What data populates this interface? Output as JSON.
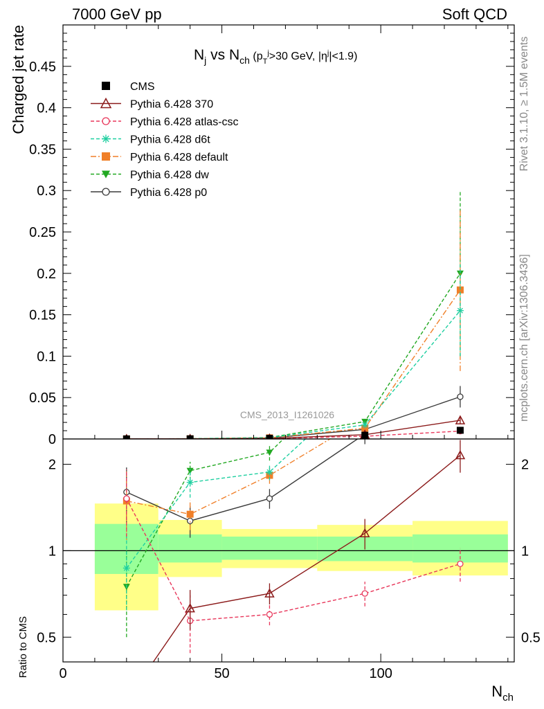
{
  "header": {
    "left_label": "7000 GeV pp",
    "right_label": "Soft QCD"
  },
  "side_labels": {
    "rivet": "Rivet 3.1.10, ≥ 1.5M events",
    "source": "mcplots.cern.ch [arXiv:1306.3436]"
  },
  "chart_data": {
    "type": "line",
    "title": "N_j vs N_ch (p_T^j>30 GeV, |η^j|<1.9)",
    "analysis_tag": "CMS_2013_I1261026",
    "xlabel": "N_ch",
    "ylabel": "Charged jet rate",
    "ratio_ylabel": "Ratio to CMS",
    "xlim": [
      0,
      142
    ],
    "ylim": [
      0,
      0.5
    ],
    "ratio_ylim": [
      0.41,
      2.45
    ],
    "ratio_log": true,
    "x_ticks": [
      0,
      50,
      100
    ],
    "y_ticks": [
      0,
      0.05,
      0.1,
      0.15,
      0.2,
      0.25,
      0.3,
      0.35,
      0.4,
      0.45
    ],
    "ratio_ticks": [
      0.5,
      1,
      2
    ],
    "bins": [
      [
        10,
        30
      ],
      [
        30,
        50
      ],
      [
        50,
        80
      ],
      [
        80,
        110
      ],
      [
        110,
        140
      ]
    ],
    "band_inner": [
      [
        0.83,
        1.24
      ],
      [
        0.91,
        1.14
      ],
      [
        0.93,
        1.12
      ],
      [
        0.92,
        1.12
      ],
      [
        0.91,
        1.14
      ]
    ],
    "band_outer": [
      [
        0.62,
        1.46
      ],
      [
        0.81,
        1.28
      ],
      [
        0.87,
        1.19
      ],
      [
        0.85,
        1.23
      ],
      [
        0.82,
        1.27
      ]
    ],
    "legend": {
      "position": "top-left"
    },
    "series": [
      {
        "name": "CMS",
        "color": "#000000",
        "marker": "filled-square",
        "line": "none",
        "x": [
          20,
          40,
          65,
          95,
          125
        ],
        "y": [
          0.0001,
          0.0002,
          0.0008,
          0.0045,
          0.0105
        ]
      },
      {
        "name": "Pythia 6.428 370",
        "color": "#8b1a1a",
        "marker": "open-triangle",
        "line": "solid",
        "x": [
          20,
          40,
          65,
          95,
          125
        ],
        "y": [
          3e-05,
          0.00012,
          0.0006,
          0.0052,
          0.0225
        ],
        "ratio": [
          0.3,
          0.63,
          0.71,
          1.15,
          2.15
        ],
        "ratio_err": [
          0,
          0.1,
          0.06,
          0.14,
          0.28
        ]
      },
      {
        "name": "Pythia 6.428 atlas-csc",
        "color": "#e8365a",
        "marker": "open-circle",
        "line": "dashed",
        "x": [
          20,
          40,
          65,
          95,
          125
        ],
        "y": [
          0.00015,
          0.0001,
          0.0005,
          0.0033,
          0.0095
        ],
        "ratio": [
          1.52,
          0.57,
          0.6,
          0.71,
          0.9
        ],
        "ratio_err": [
          0.4,
          0.13,
          0.05,
          0.07,
          0.12
        ]
      },
      {
        "name": "Pythia 6.428 d6t",
        "color": "#1ecfa0",
        "marker": "star",
        "line": "dashed",
        "x": [
          20,
          40,
          65,
          95,
          125
        ],
        "y": [
          0.0001,
          0.0003,
          0.0015,
          0.017,
          0.155
        ],
        "ratio": [
          0.87,
          1.73,
          1.88,
          3.8,
          14.8
        ],
        "ratio_err": [
          0.25,
          0.2,
          0.12,
          0.3,
          0
        ]
      },
      {
        "name": "Pythia 6.428 default",
        "color": "#f07f28",
        "marker": "filled-square",
        "line": "dashdot",
        "x": [
          20,
          40,
          65,
          95,
          125
        ],
        "y": [
          0.00015,
          0.00028,
          0.0014,
          0.013,
          0.18
        ],
        "ratio": [
          1.49,
          1.34,
          1.83,
          2.9,
          17.1
        ],
        "ratio_err": [
          0.4,
          0.16,
          0.12,
          0.25,
          0
        ]
      },
      {
        "name": "Pythia 6.428 dw",
        "color": "#21a821",
        "marker": "filled-triangle-down",
        "line": "dashed",
        "x": [
          20,
          40,
          65,
          95,
          125
        ],
        "y": [
          7e-05,
          0.0004,
          0.0018,
          0.021,
          0.2
        ],
        "ratio": [
          0.75,
          1.9,
          2.2,
          4.6,
          19.0
        ],
        "ratio_err": [
          0.25,
          0.14,
          0.14,
          0.35,
          0
        ]
      },
      {
        "name": "Pythia 6.428 p0",
        "color": "#3a3a3a",
        "marker": "open-circle",
        "line": "solid",
        "x": [
          20,
          40,
          65,
          95,
          125
        ],
        "y": [
          0.00016,
          0.00025,
          0.0012,
          0.0115,
          0.051
        ],
        "ratio": [
          1.6,
          1.27,
          1.52,
          2.55,
          4.85
        ],
        "ratio_err": [
          0.35,
          0.16,
          0.12,
          0.2,
          0
        ]
      }
    ],
    "main_err": {
      "Pythia 6.428 d6t": [
        0,
        0,
        0,
        0.002,
        0.055
      ],
      "Pythia 6.428 default": [
        0,
        0,
        0,
        0.002,
        0.098
      ],
      "Pythia 6.428 dw": [
        0,
        0,
        0,
        0.002,
        0.1
      ],
      "Pythia 6.428 p0": [
        0,
        0,
        0,
        0.001,
        0.013
      ],
      "Pythia 6.428 370": [
        0,
        0,
        0,
        0.001,
        0.004
      ]
    }
  }
}
